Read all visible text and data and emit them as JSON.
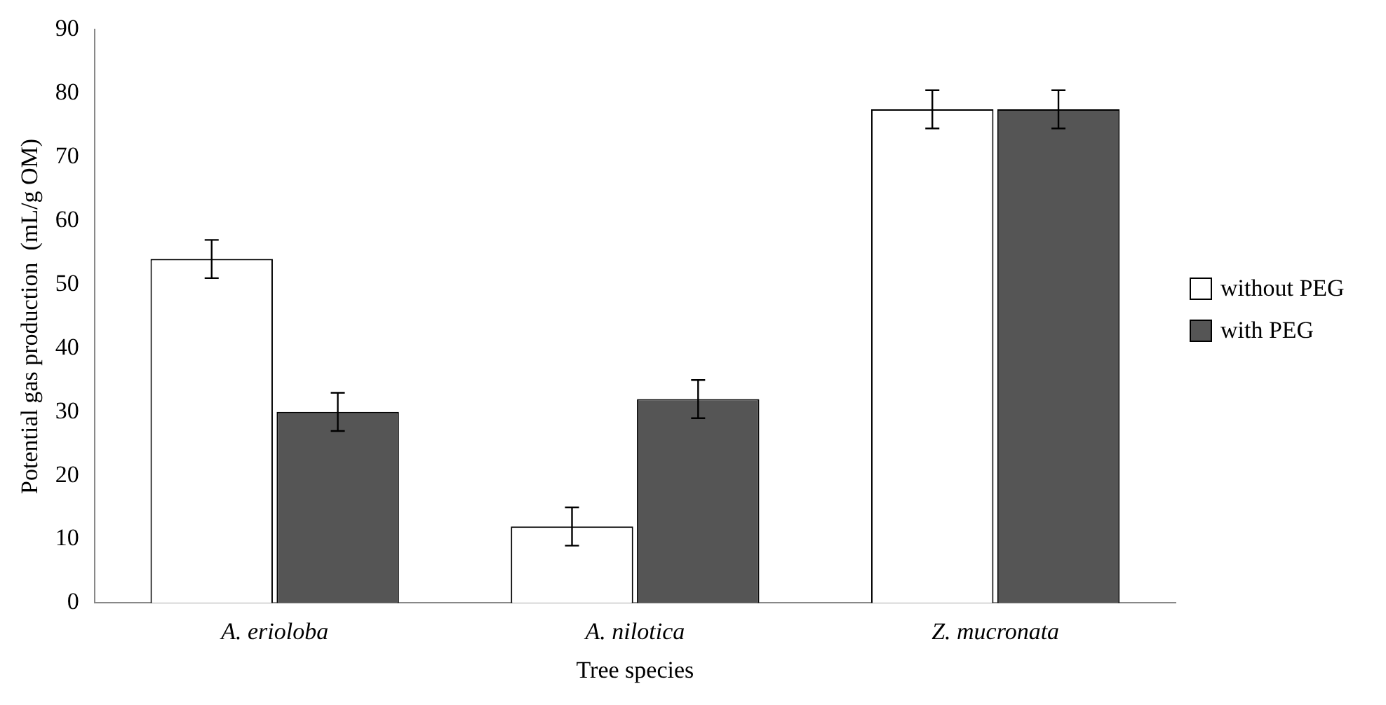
{
  "chart_data": {
    "type": "bar",
    "xlabel": "Tree species",
    "ylabel": "Potential gas production  (mL/g OM)",
    "categories": [
      "A. erioloba",
      "A. nilotica",
      "Z. mucronata"
    ],
    "series": [
      {
        "name": "without PEG",
        "color": "#ffffff",
        "values": [
          54,
          12,
          77.5
        ],
        "errors": [
          3,
          3,
          3
        ]
      },
      {
        "name": "with PEG",
        "color": "#555555",
        "values": [
          30,
          32,
          77.5
        ],
        "errors": [
          3,
          3,
          3
        ]
      }
    ],
    "ylim": [
      0,
      90
    ],
    "yticks": [
      0,
      10,
      20,
      30,
      40,
      50,
      60,
      70,
      80,
      90
    ],
    "grid": false,
    "legend": "right"
  }
}
